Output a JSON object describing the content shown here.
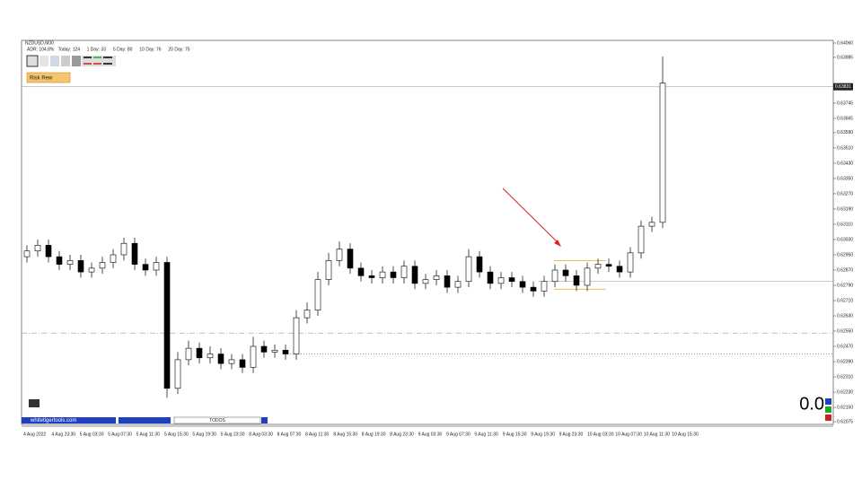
{
  "chart_data": {
    "type": "candlestick",
    "title": "NZDUSD,M30",
    "stats": [
      "ADR: 104.8%",
      "Today: 124",
      "1 Day: 33",
      "5 Day: 80",
      "10 Day: 76",
      "20 Day: 75"
    ],
    "risk_button": "Risk Rew",
    "site": "whitetigertools.com",
    "filter_button": "TODOS",
    "counter": "0.0",
    "current_price": 0.63831,
    "ylim": [
      0.62075,
      0.6406
    ],
    "yticks": [
      {
        "value": 0.6406,
        "label": "0.64060"
      },
      0.63985,
      0.63745,
      0.63665,
      {
        "value": 0.6359,
        "label": "0.63590"
      },
      {
        "value": 0.6351,
        "label": "0.63510"
      },
      {
        "value": 0.6343,
        "label": "0.63430"
      },
      {
        "value": 0.6335,
        "label": "0.63350"
      },
      {
        "value": 0.6327,
        "label": "0.63270"
      },
      {
        "value": 0.6319,
        "label": "0.63190"
      },
      {
        "value": 0.6311,
        "label": "0.63110"
      },
      {
        "value": 0.6303,
        "label": "0.63030"
      },
      {
        "value": 0.6295,
        "label": "0.62950"
      },
      {
        "value": 0.6287,
        "label": "0.62870"
      },
      {
        "value": 0.6279,
        "label": "0.62790"
      },
      {
        "value": 0.6271,
        "label": "0.62710"
      },
      {
        "value": 0.6263,
        "label": "0.62630"
      },
      {
        "value": 0.6255,
        "label": "0.62550"
      },
      {
        "value": 0.6247,
        "label": "0.62470"
      },
      {
        "value": 0.6239,
        "label": "0.62390"
      },
      {
        "value": 0.6231,
        "label": "0.62310"
      },
      {
        "value": 0.6223,
        "label": "0.62230"
      },
      {
        "value": 0.6215,
        "label": "0.62150"
      },
      0.62075
    ],
    "x_labels": [
      "4 Aug 2022",
      "4 Aug 23:30",
      "5 Aug 03:30",
      "5 Aug 07:30",
      "5 Aug 11:30",
      "5 Aug 15:30",
      "5 Aug 19:30",
      "5 Aug 23:30",
      "8 Aug 03:30",
      "8 Aug 07:30",
      "8 Aug 11:30",
      "8 Aug 15:30",
      "8 Aug 19:30",
      "8 Aug 23:30",
      "9 Aug 03:30",
      "9 Aug 07:30",
      "9 Aug 11:30",
      "9 Aug 15:30",
      "9 Aug 19:30",
      "9 Aug 23:30",
      "10 Aug 03:30",
      "10 Aug 07:30",
      "10 Aug 11:30",
      "10 Aug 15:30"
    ],
    "levels": [
      0.6281,
      0.6254,
      0.6243
    ],
    "risk_box": [
      0.6292,
      0.6277
    ],
    "candles": [
      [
        0.6294,
        0.63,
        0.6291,
        0.6297
      ],
      [
        0.6297,
        0.6303,
        0.6294,
        0.63
      ],
      [
        0.63,
        0.6303,
        0.6291,
        0.6294
      ],
      [
        0.6294,
        0.6297,
        0.6287,
        0.629
      ],
      [
        0.629,
        0.6295,
        0.6287,
        0.6292
      ],
      [
        0.6292,
        0.6295,
        0.6283,
        0.6286
      ],
      [
        0.6286,
        0.6291,
        0.6283,
        0.6288
      ],
      [
        0.6288,
        0.6294,
        0.6285,
        0.6291
      ],
      [
        0.6291,
        0.6298,
        0.6288,
        0.6295
      ],
      [
        0.6295,
        0.6304,
        0.6292,
        0.6301
      ],
      [
        0.6301,
        0.6304,
        0.6287,
        0.629
      ],
      [
        0.629,
        0.6293,
        0.6284,
        0.6287
      ],
      [
        0.6287,
        0.6294,
        0.6284,
        0.6291
      ],
      [
        0.6291,
        0.6294,
        0.622,
        0.6225
      ],
      [
        0.6225,
        0.6244,
        0.6222,
        0.624
      ],
      [
        0.624,
        0.625,
        0.6237,
        0.6246
      ],
      [
        0.6246,
        0.6249,
        0.6238,
        0.6241
      ],
      [
        0.6241,
        0.6247,
        0.6238,
        0.6243
      ],
      [
        0.6243,
        0.6246,
        0.6235,
        0.6238
      ],
      [
        0.6238,
        0.6243,
        0.6235,
        0.624
      ],
      [
        0.624,
        0.6243,
        0.6233,
        0.6236
      ],
      [
        0.6236,
        0.6252,
        0.6233,
        0.6247
      ],
      [
        0.6247,
        0.625,
        0.6241,
        0.6244
      ],
      [
        0.6244,
        0.6248,
        0.6241,
        0.6245
      ],
      [
        0.6245,
        0.6248,
        0.624,
        0.6243
      ],
      [
        0.6243,
        0.6266,
        0.624,
        0.6262
      ],
      [
        0.6262,
        0.627,
        0.6259,
        0.6266
      ],
      [
        0.6266,
        0.6286,
        0.6263,
        0.6282
      ],
      [
        0.6282,
        0.6296,
        0.6279,
        0.6292
      ],
      [
        0.6292,
        0.6302,
        0.6289,
        0.6298
      ],
      [
        0.6298,
        0.6301,
        0.6285,
        0.6288
      ],
      [
        0.6288,
        0.6291,
        0.6281,
        0.6284
      ],
      [
        0.6284,
        0.6287,
        0.628,
        0.6283
      ],
      [
        0.6283,
        0.6289,
        0.628,
        0.6286
      ],
      [
        0.6286,
        0.6289,
        0.628,
        0.6283
      ],
      [
        0.6283,
        0.6292,
        0.628,
        0.6289
      ],
      [
        0.6289,
        0.6292,
        0.6277,
        0.628
      ],
      [
        0.628,
        0.6285,
        0.6277,
        0.6282
      ],
      [
        0.6282,
        0.6287,
        0.6279,
        0.6284
      ],
      [
        0.6284,
        0.6287,
        0.6275,
        0.6278
      ],
      [
        0.6278,
        0.6284,
        0.6275,
        0.6281
      ],
      [
        0.6281,
        0.6298,
        0.6278,
        0.6294
      ],
      [
        0.6294,
        0.6297,
        0.6283,
        0.6286
      ],
      [
        0.6286,
        0.6289,
        0.6277,
        0.628
      ],
      [
        0.628,
        0.6286,
        0.6277,
        0.6283
      ],
      [
        0.6283,
        0.6286,
        0.6278,
        0.6281
      ],
      [
        0.6281,
        0.6284,
        0.6275,
        0.6278
      ],
      [
        0.6278,
        0.6281,
        0.6273,
        0.6276
      ],
      [
        0.6276,
        0.6284,
        0.6273,
        0.6281
      ],
      [
        0.6281,
        0.629,
        0.6278,
        0.6287
      ],
      [
        0.6287,
        0.629,
        0.6281,
        0.6284
      ],
      [
        0.6284,
        0.6287,
        0.6276,
        0.6279
      ],
      [
        0.6279,
        0.6291,
        0.6276,
        0.6288
      ],
      [
        0.6288,
        0.6293,
        0.6285,
        0.629
      ],
      [
        0.629,
        0.6293,
        0.6286,
        0.6289
      ],
      [
        0.6289,
        0.6292,
        0.6283,
        0.6286
      ],
      [
        0.6286,
        0.6299,
        0.6283,
        0.6296
      ],
      [
        0.6296,
        0.6313,
        0.6293,
        0.631
      ],
      [
        0.631,
        0.6315,
        0.6307,
        0.6312
      ],
      [
        0.6312,
        0.6399,
        0.6309,
        0.6385
      ]
    ]
  }
}
